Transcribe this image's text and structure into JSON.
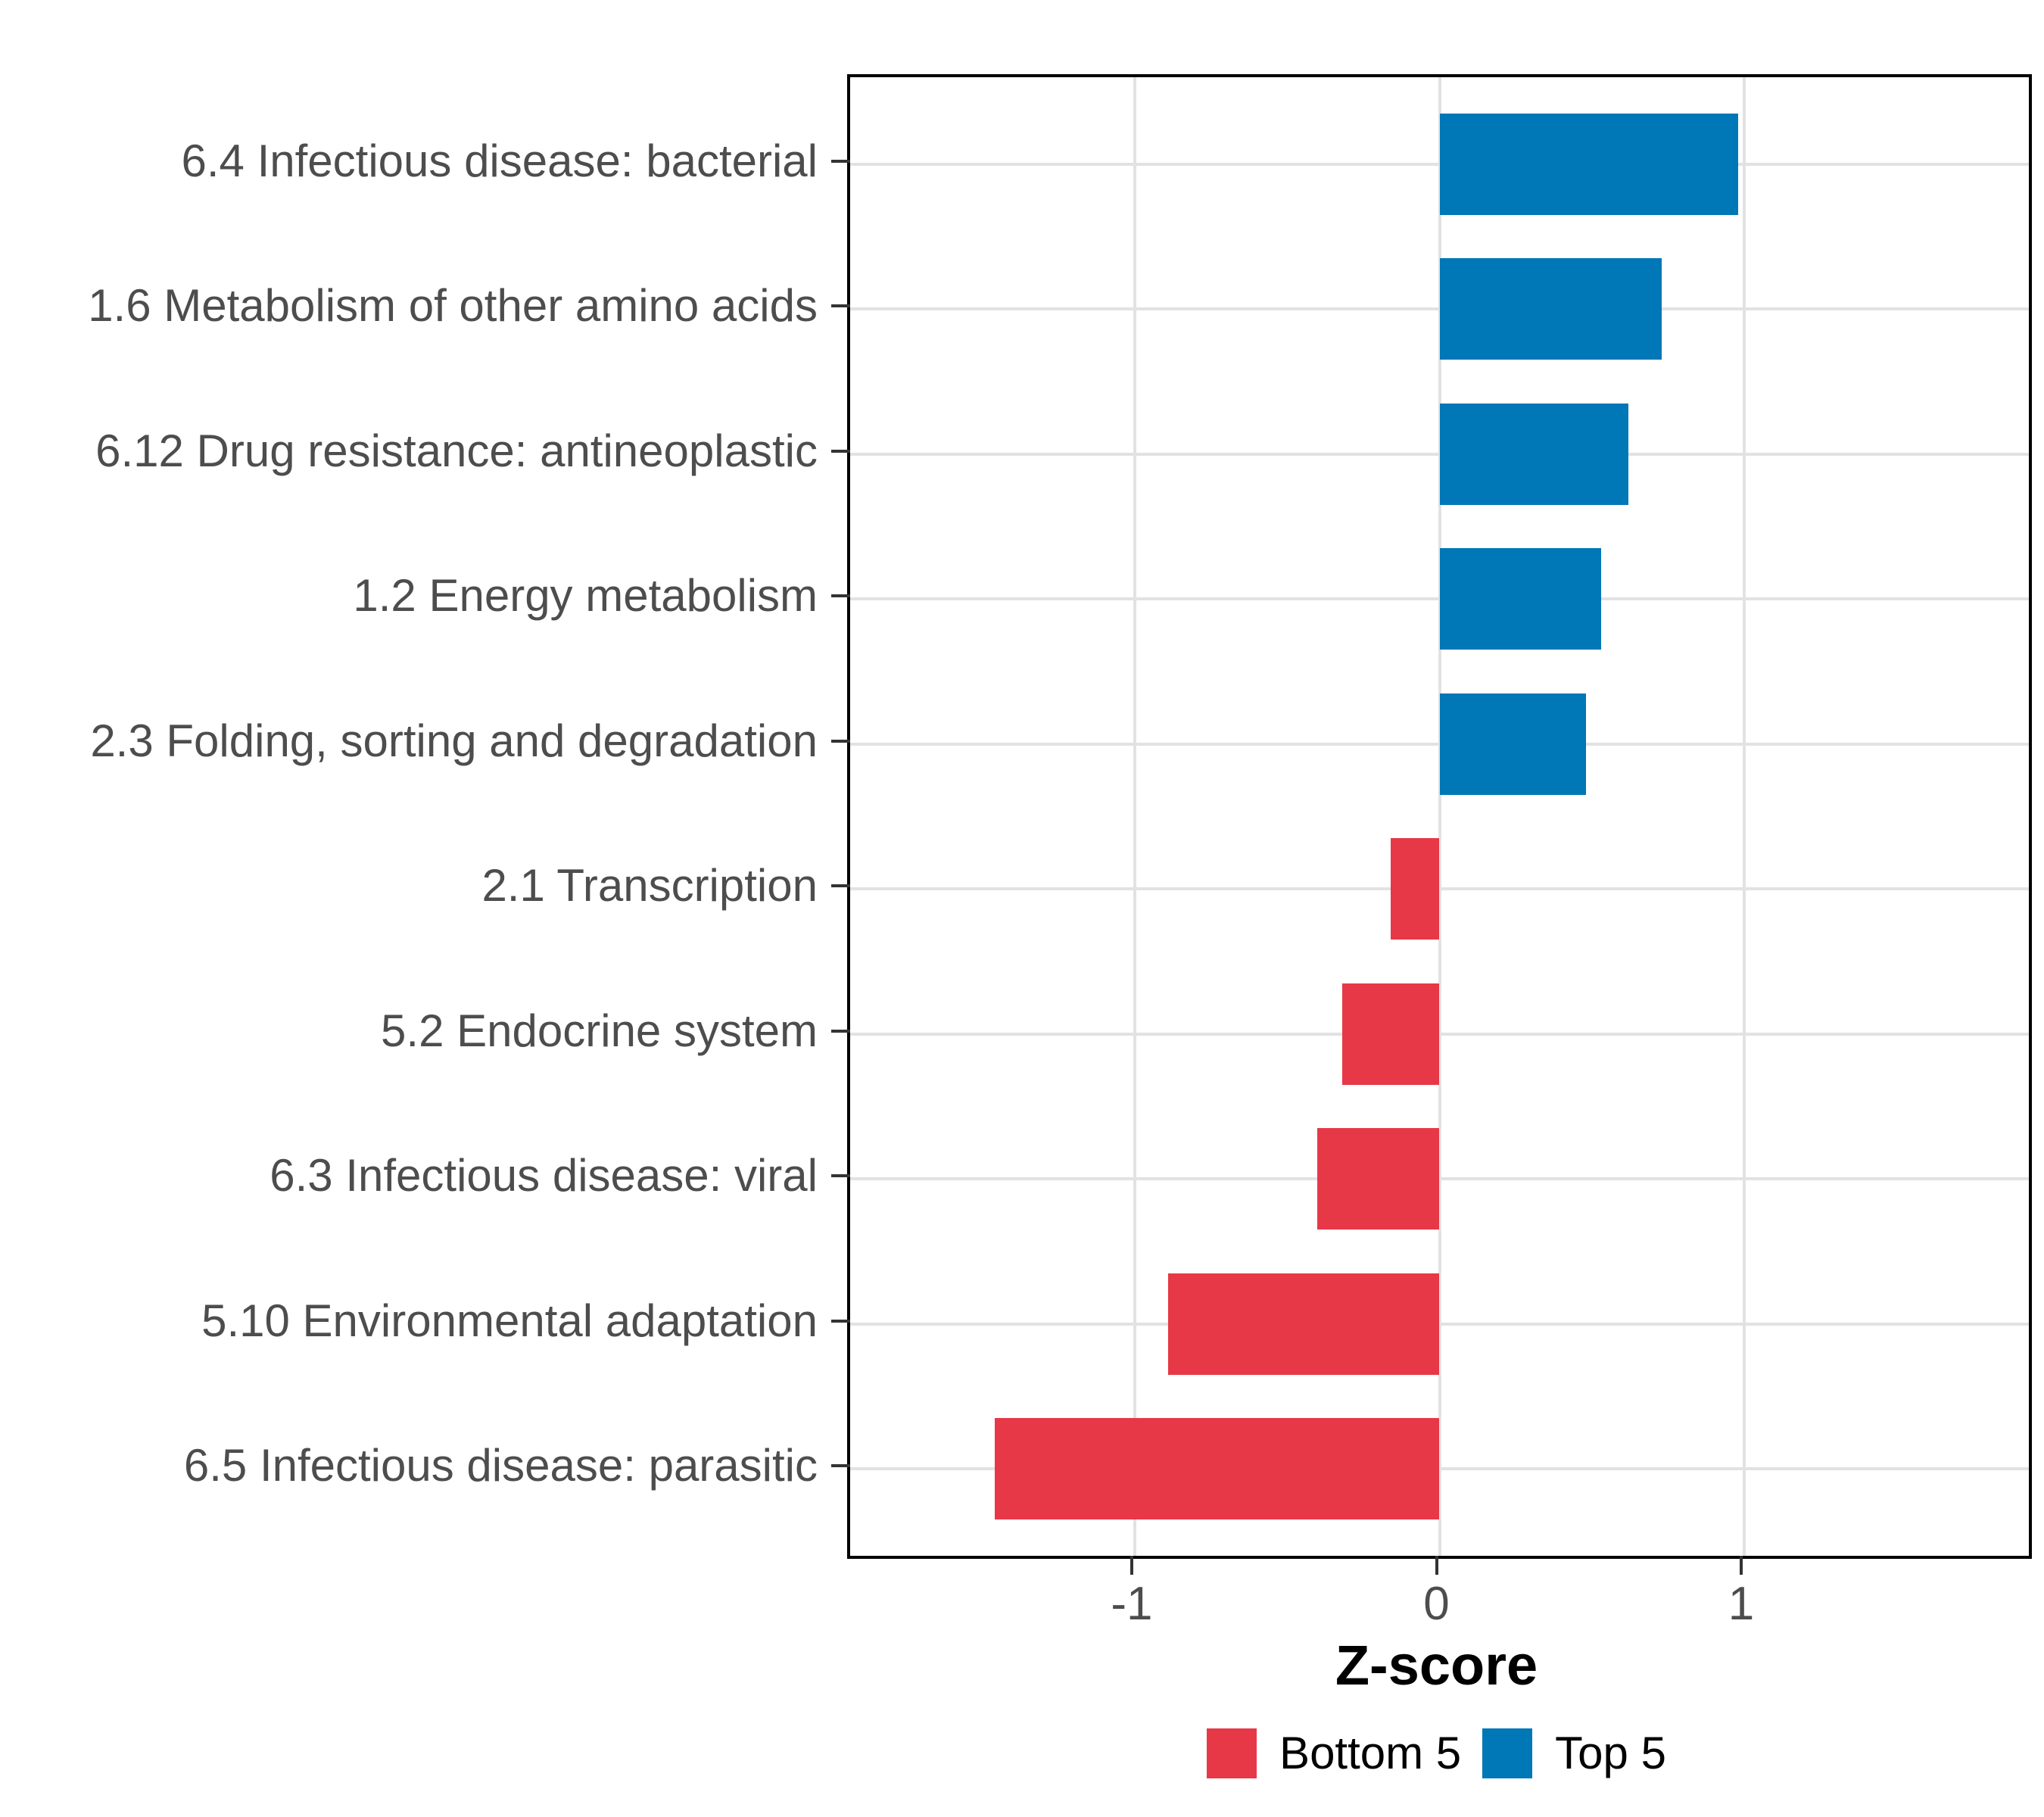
{
  "chart_data": {
    "type": "bar",
    "orientation": "horizontal",
    "title": "",
    "xlabel": "Z-score",
    "ylabel": "",
    "xlim": [
      -1.934,
      1.934
    ],
    "xticks": [
      -1,
      0,
      1
    ],
    "xtick_labels": [
      "-1",
      "0",
      "1"
    ],
    "grid": "major-only",
    "legend_position": "bottom",
    "categories": [
      "6.4 Infectious disease: bacterial",
      "1.6 Metabolism of other amino acids",
      "6.12 Drug resistance: antineoplastic",
      "1.2 Energy metabolism",
      "2.3 Folding, sorting and degradation",
      "2.1 Transcription",
      "5.2 Endocrine system",
      "6.3 Infectious disease: viral",
      "5.10 Environmental adaptation",
      "6.5 Infectious disease: parasitic"
    ],
    "bars": [
      {
        "category": "6.4 Infectious disease: bacterial",
        "value": 0.98,
        "group": "Top 5"
      },
      {
        "category": "1.6 Metabolism of other amino acids",
        "value": 0.73,
        "group": "Top 5"
      },
      {
        "category": "6.12 Drug resistance: antineoplastic",
        "value": 0.62,
        "group": "Top 5"
      },
      {
        "category": "1.2 Energy metabolism",
        "value": 0.53,
        "group": "Top 5"
      },
      {
        "category": "2.3 Folding, sorting and degradation",
        "value": 0.48,
        "group": "Top 5"
      },
      {
        "category": "2.1 Transcription",
        "value": -0.16,
        "group": "Bottom 5"
      },
      {
        "category": "5.2 Endocrine system",
        "value": -0.32,
        "group": "Bottom 5"
      },
      {
        "category": "6.3 Infectious disease: viral",
        "value": -0.4,
        "group": "Bottom 5"
      },
      {
        "category": "5.10 Environmental adaptation",
        "value": -0.89,
        "group": "Bottom 5"
      },
      {
        "category": "6.5 Infectious disease: parasitic",
        "value": -1.46,
        "group": "Bottom 5"
      }
    ],
    "legend": [
      {
        "label": "Bottom 5",
        "color": "#E73847"
      },
      {
        "label": "Top 5",
        "color": "#0077B6"
      }
    ],
    "colors": {
      "Top 5": "#0077B6",
      "Bottom 5": "#E73847",
      "grid": "#E2E2E2",
      "axis_text": "#4D4D4D",
      "panel_border": "#000000"
    }
  }
}
